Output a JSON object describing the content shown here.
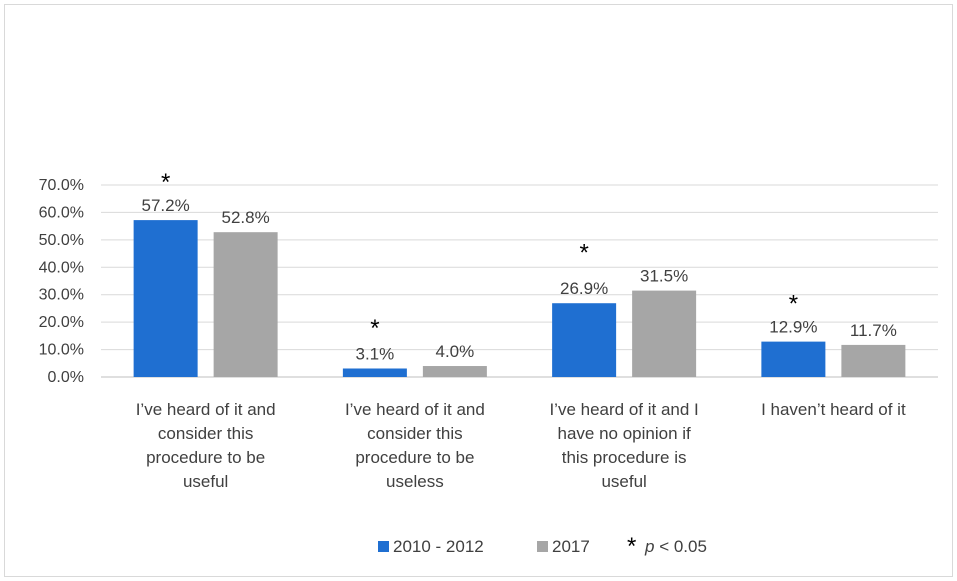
{
  "chart_data": {
    "type": "bar",
    "categories": [
      [
        "I’ve heard of it and",
        "consider this",
        "procedure to be",
        "useful"
      ],
      [
        "I’ve heard of it and",
        "consider this",
        "procedure to be",
        "useless"
      ],
      [
        "I’ve heard of it and I",
        "have no opinion if",
        "this procedure is",
        "useful"
      ],
      [
        "I haven’t heard of it"
      ]
    ],
    "series": [
      {
        "name": "2010 - 2012",
        "values": [
          57.2,
          3.1,
          26.9,
          12.9
        ],
        "labels": [
          "57.2%",
          "3.1%",
          "26.9%",
          "12.9%"
        ],
        "color": "#1f6fd1"
      },
      {
        "name": "2017",
        "values": [
          52.8,
          4.0,
          31.5,
          11.7
        ],
        "labels": [
          "52.8%",
          "4.0%",
          "31.5%",
          "11.7%"
        ],
        "color": "#a6a6a6"
      }
    ],
    "significance": {
      "marker": "*",
      "flags": [
        true,
        true,
        true,
        true
      ]
    },
    "ylim": [
      0,
      70
    ],
    "yticks": [
      0,
      10,
      20,
      30,
      40,
      50,
      60,
      70
    ],
    "ytick_labels": [
      "0.0%",
      "10.0%",
      "20.0%",
      "30.0%",
      "40.0%",
      "50.0%",
      "60.0%",
      "70.0%"
    ],
    "legend": {
      "position": "bottom",
      "note_marker": "*",
      "note_var": "p",
      "note_text": " < 0.05"
    },
    "grid": true,
    "title": "",
    "xlabel": "",
    "ylabel": ""
  }
}
